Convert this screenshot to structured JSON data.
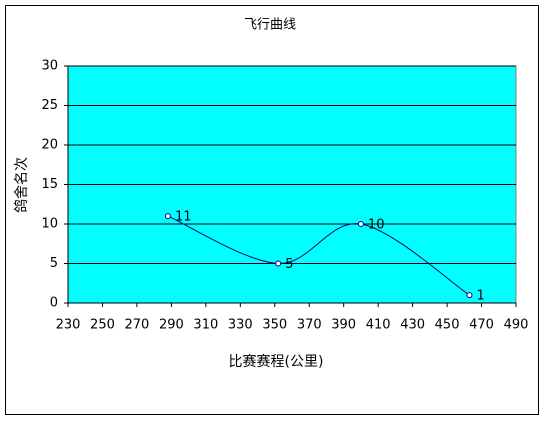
{
  "chart_data": {
    "type": "scatter",
    "smooth": true,
    "title": "飞行曲线",
    "x_label": "比赛赛程(公里)",
    "y_label": "鸽舍名次",
    "x": [
      288,
      352,
      400,
      463
    ],
    "values": [
      11,
      5,
      10,
      1
    ],
    "color": "#000080",
    "plot_background": "#00ffff",
    "xlim": [
      230,
      490
    ],
    "xticks": [
      230,
      250,
      270,
      290,
      310,
      330,
      350,
      370,
      390,
      410,
      430,
      450,
      470,
      490
    ],
    "ylim": [
      0,
      30
    ],
    "yticks": [
      0,
      5,
      10,
      15,
      20,
      25,
      30
    ],
    "grid": true
  }
}
